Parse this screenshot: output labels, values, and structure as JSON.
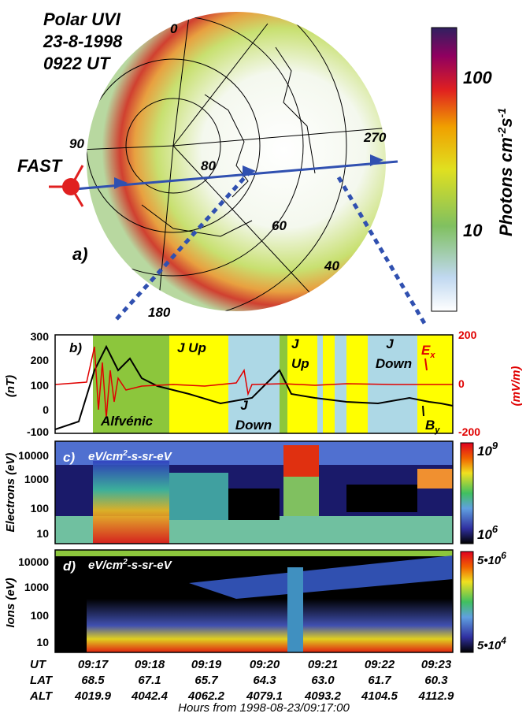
{
  "map": {
    "title_lines": [
      "Polar UVI",
      "23-8-1998",
      "0922 UT"
    ],
    "labels": {
      "lon_0": "0",
      "lon_90": "90",
      "lon_270": "270",
      "lon_180": "180",
      "lat_80": "80",
      "lat_60": "60",
      "lat_40": "40"
    },
    "spacecraft": "FAST",
    "panel": "a)"
  },
  "colorbar": {
    "label": "Photons cm",
    "exp1": "-2",
    "unit2": "s",
    "exp2": "-1",
    "ticks": [
      "100",
      "10"
    ]
  },
  "panel_b": {
    "label": "b)",
    "left_axis": "(nT)",
    "left_ticks": [
      "300",
      "200",
      "100",
      "0",
      "-100"
    ],
    "right_axis": "(mV/m)",
    "right_ticks": [
      "200",
      "0",
      "-200"
    ],
    "regions": [
      "Alfvénic",
      "J Up",
      "J",
      "Down",
      "J",
      "Up",
      "J",
      "Down"
    ],
    "ex": "E",
    "ex_sub": "x",
    "by": "B",
    "by_sub": "y"
  },
  "panel_c": {
    "label": "c)",
    "units_a": "eV/cm",
    "units_exp": "2",
    "units_b": "-s-sr-eV",
    "axis": "Electrons (eV)",
    "yticks": [
      "10000",
      "1000",
      "100",
      "10"
    ],
    "cbar_top": "10",
    "cbar_top_exp": "9",
    "cbar_bottom": "10",
    "cbar_bottom_exp": "6"
  },
  "panel_d": {
    "label": "d)",
    "units_a": "eV/cm",
    "units_exp": "2",
    "units_b": "-s-sr-eV",
    "axis": "Ions (eV)",
    "yticks": [
      "10000",
      "1000",
      "100",
      "10"
    ],
    "cbar_top": "5•10",
    "cbar_top_exp": "6",
    "cbar_bottom": "5•10",
    "cbar_bottom_exp": "4"
  },
  "time_axis": {
    "rows": [
      [
        "UT",
        "09:17",
        "09:18",
        "09:19",
        "09:20",
        "09:21",
        "09:22",
        "09:23"
      ],
      [
        "LAT",
        "68.5",
        "67.1",
        "65.7",
        "64.3",
        "63.0",
        "61.7",
        "60.3"
      ],
      [
        "ALT",
        "4019.9",
        "4042.4",
        "4062.2",
        "4079.1",
        "4093.2",
        "4104.5",
        "4112.9"
      ]
    ],
    "caption": "Hours from 1998-08-23/09:17:00"
  }
}
